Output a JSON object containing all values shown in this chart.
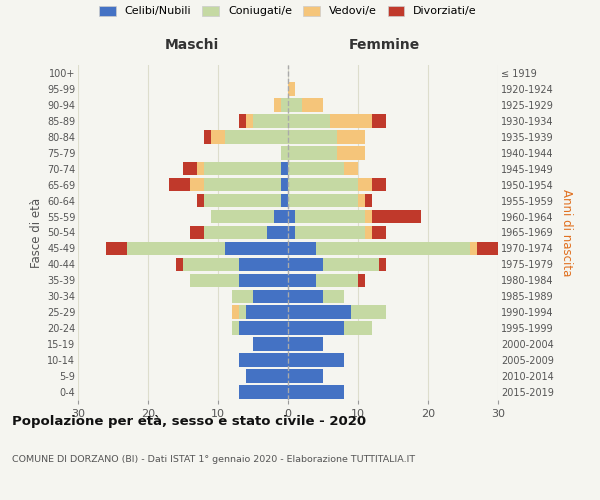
{
  "age_groups": [
    "0-4",
    "5-9",
    "10-14",
    "15-19",
    "20-24",
    "25-29",
    "30-34",
    "35-39",
    "40-44",
    "45-49",
    "50-54",
    "55-59",
    "60-64",
    "65-69",
    "70-74",
    "75-79",
    "80-84",
    "85-89",
    "90-94",
    "95-99",
    "100+"
  ],
  "birth_years": [
    "2015-2019",
    "2010-2014",
    "2005-2009",
    "2000-2004",
    "1995-1999",
    "1990-1994",
    "1985-1989",
    "1980-1984",
    "1975-1979",
    "1970-1974",
    "1965-1969",
    "1960-1964",
    "1955-1959",
    "1950-1954",
    "1945-1949",
    "1940-1944",
    "1935-1939",
    "1930-1934",
    "1925-1929",
    "1920-1924",
    "≤ 1919"
  ],
  "male_celibi": [
    7,
    6,
    7,
    5,
    7,
    6,
    5,
    7,
    7,
    9,
    3,
    2,
    1,
    1,
    1,
    0,
    0,
    0,
    0,
    0,
    0
  ],
  "male_coniugati": [
    0,
    0,
    0,
    0,
    1,
    1,
    3,
    7,
    8,
    14,
    9,
    9,
    11,
    11,
    11,
    1,
    9,
    5,
    1,
    0,
    0
  ],
  "male_vedovi": [
    0,
    0,
    0,
    0,
    0,
    1,
    0,
    0,
    0,
    0,
    0,
    0,
    0,
    2,
    1,
    0,
    2,
    1,
    1,
    0,
    0
  ],
  "male_divorziati": [
    0,
    0,
    0,
    0,
    0,
    0,
    0,
    0,
    1,
    3,
    2,
    0,
    1,
    3,
    2,
    0,
    1,
    1,
    0,
    0,
    0
  ],
  "female_celibi": [
    8,
    5,
    8,
    5,
    8,
    9,
    5,
    4,
    5,
    4,
    1,
    1,
    0,
    0,
    0,
    0,
    0,
    0,
    0,
    0,
    0
  ],
  "female_coniugati": [
    0,
    0,
    0,
    0,
    4,
    5,
    3,
    6,
    8,
    22,
    10,
    10,
    10,
    10,
    8,
    7,
    7,
    6,
    2,
    0,
    0
  ],
  "female_vedovi": [
    0,
    0,
    0,
    0,
    0,
    0,
    0,
    0,
    0,
    1,
    1,
    1,
    1,
    2,
    2,
    4,
    4,
    6,
    3,
    1,
    0
  ],
  "female_divorziati": [
    0,
    0,
    0,
    0,
    0,
    0,
    0,
    1,
    1,
    3,
    2,
    7,
    1,
    2,
    0,
    0,
    0,
    2,
    0,
    0,
    0
  ],
  "color_celibi": "#4472c4",
  "color_coniugati": "#c5d9a3",
  "color_vedovi": "#f5c57a",
  "color_divorziati": "#c0392b",
  "title": "Popolazione per età, sesso e stato civile - 2020",
  "subtitle": "COMUNE DI DORZANO (BI) - Dati ISTAT 1° gennaio 2020 - Elaborazione TUTTITALIA.IT",
  "label_maschi": "Maschi",
  "label_femmine": "Femmine",
  "ylabel_left": "Fasce di età",
  "ylabel_right": "Anni di nascita",
  "legend_labels": [
    "Celibi/Nubili",
    "Coniugati/e",
    "Vedovi/e",
    "Divorziati/e"
  ],
  "xlim": 30,
  "bg_color": "#f5f5f0",
  "plot_bg": "#f5f5f0",
  "grid_color": "#ddddcc"
}
